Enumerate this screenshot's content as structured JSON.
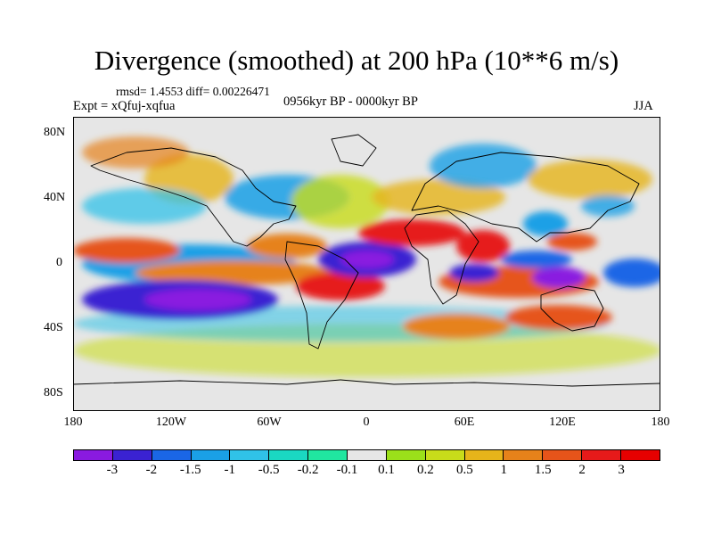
{
  "title": "Divergence (smoothed) at 200 hPa (10**6 m/s)",
  "stats": "rmsd= 1.4553 diff= 0.00226471",
  "experiment": "Expt = xQfuj-xqfua",
  "period": "0956kyr BP - 0000kyr BP",
  "season": "JJA",
  "axes": {
    "y_labels": [
      "80N",
      "40N",
      "0",
      "40S",
      "80S"
    ],
    "x_labels": [
      "180",
      "120W",
      "60W",
      "0",
      "60E",
      "120E",
      "180"
    ]
  },
  "colorbar": {
    "labels": [
      "-3",
      "-2",
      "-1.5",
      "-1",
      "-0.5",
      "-0.2",
      "-0.1",
      "0.1",
      "0.2",
      "0.5",
      "1",
      "1.5",
      "2",
      "3"
    ],
    "colors": [
      "#8a1ae0",
      "#3a22d2",
      "#1a66e6",
      "#1aa0e6",
      "#30c2e8",
      "#1ad8c2",
      "#20e6a0",
      "#e6e6e6",
      "#9be01a",
      "#c8dc1a",
      "#e6b41a",
      "#e6821a",
      "#e6541a",
      "#e61a1a",
      "#e60000"
    ]
  },
  "palette": {
    "near_zero": "#e6e6e6",
    "coast": "#000000"
  }
}
